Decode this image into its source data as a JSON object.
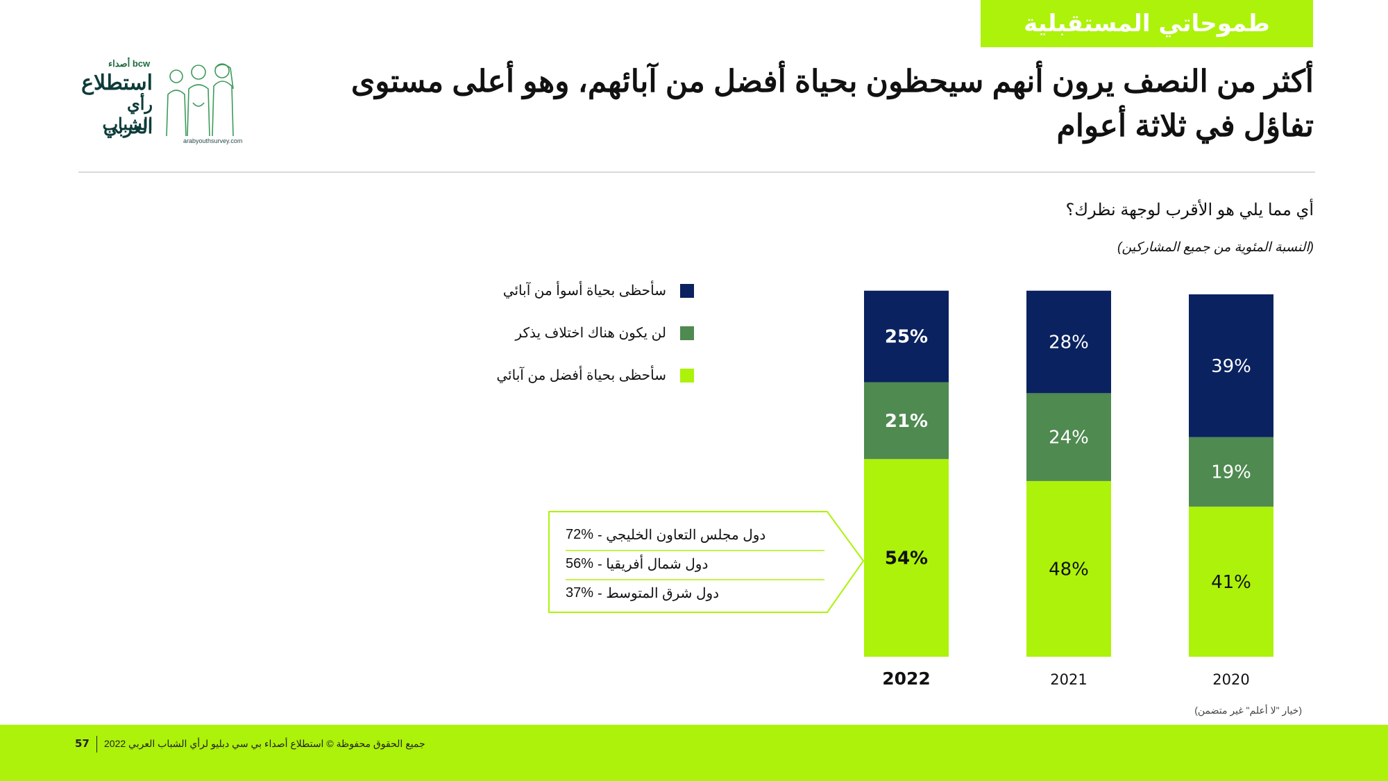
{
  "header": {
    "tag": "طموحاتي المستقبلية",
    "title": "أكثر من النصف يرون أنهم سيحظون بحياة أفضل من آبائهم، وهو أعلى مستوى تفاؤل في ثلاثة أعوام"
  },
  "logo": {
    "brand_small": "bcw أصداء",
    "line1": "استطلاع",
    "line2": "رأي الشباب",
    "line3": "العربي",
    "url": "arabyouthsurvey.com"
  },
  "question": "أي مما يلي هو الأقرب لوجهة نظرك؟",
  "subquestion": "(النسبة المئوية من جميع المشاركين)",
  "legend": [
    {
      "label": "سأحظى بحياة أسوأ من آبائي",
      "color": "#0b2260"
    },
    {
      "label": "لن يكون هناك اختلاف يذكر",
      "color": "#4f8a50"
    },
    {
      "label": "سأحظى بحياة أفضل من آبائي",
      "color": "#adf20a"
    }
  ],
  "chart_data": {
    "type": "bar",
    "stacked": true,
    "categories": [
      "2022",
      "2021",
      "2020"
    ],
    "series": [
      {
        "name": "سأحظى بحياة أفضل من آبائي",
        "values": [
          54,
          48,
          41
        ],
        "labels": [
          "54%",
          "48%",
          "41%"
        ],
        "color": "#adf20a"
      },
      {
        "name": "لن يكون هناك اختلاف يذكر",
        "values": [
          21,
          24,
          19
        ],
        "labels": [
          "21%",
          "24%",
          "19%"
        ],
        "color": "#4f8a50"
      },
      {
        "name": "سأحظى بحياة أسوأ من آبائي",
        "values": [
          25,
          28,
          39
        ],
        "labels": [
          "25%",
          "28%",
          "39%"
        ],
        "color": "#0b2260"
      }
    ],
    "ylim": [
      0,
      99
    ],
    "highlight_category": "2022"
  },
  "callout": {
    "rows": [
      {
        "region": "دول مجلس التعاون الخليجي -",
        "value": "72%"
      },
      {
        "region": "دول شمال أفريقيا -",
        "value": "56%"
      },
      {
        "region": "دول شرق المتوسط -",
        "value": "37%"
      }
    ]
  },
  "note": "(خيار \"لا أعلم\" غير متضمن)",
  "footer": {
    "text": "جميع الحقوق محفوظة © استطلاع أصداء بي سي دبليو لرأي الشباب العربي 2022",
    "page": "57"
  }
}
